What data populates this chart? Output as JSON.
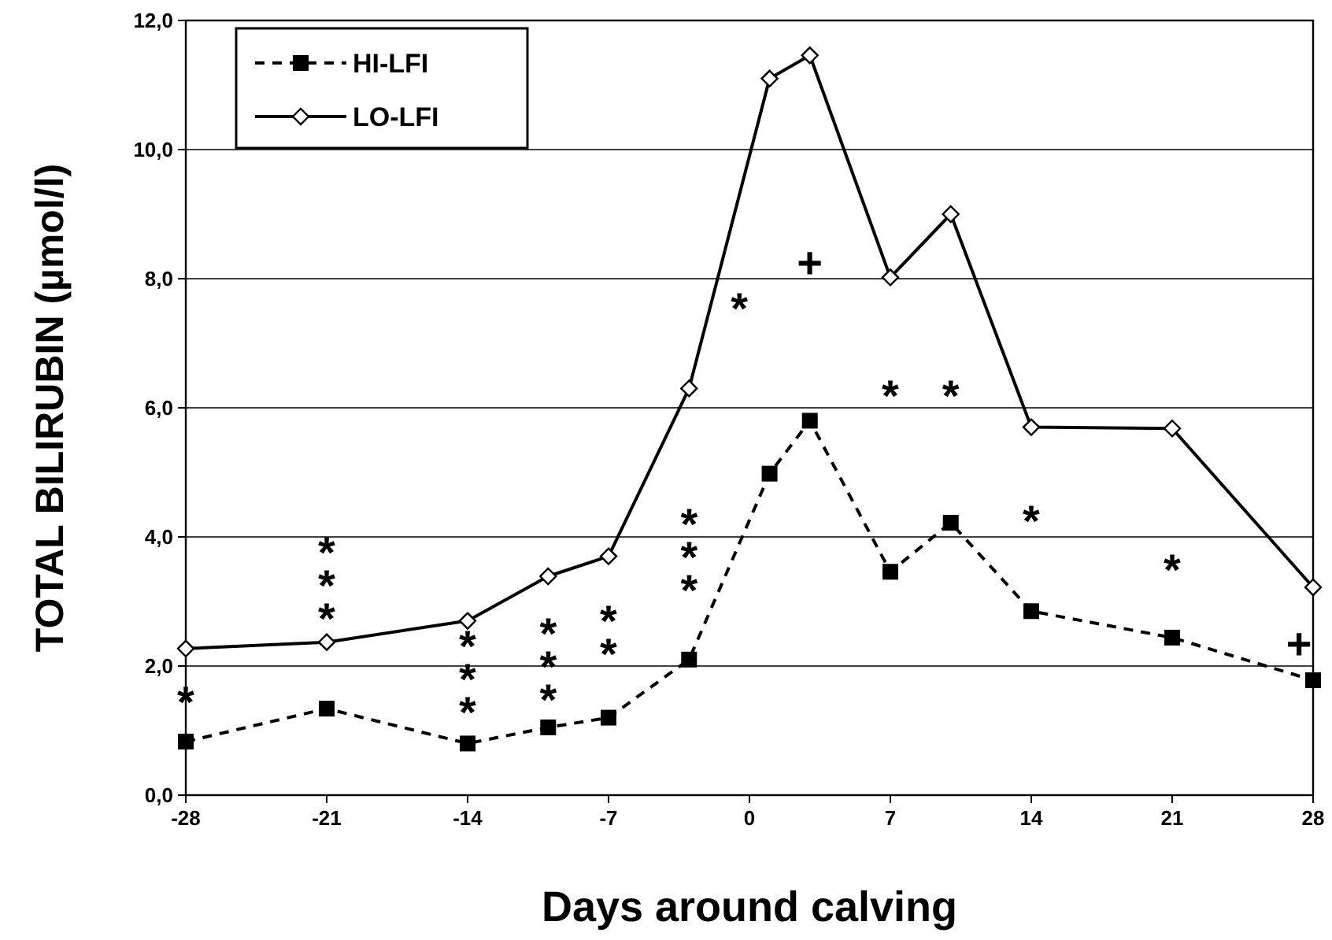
{
  "chart_data": {
    "type": "line",
    "xlabel": "Days around calving",
    "ylabel": "TOTAL BILIRUBIN (µmol/l)",
    "xlim": [
      -28,
      28
    ],
    "xticks": [
      -28,
      -21,
      -14,
      -7,
      0,
      7,
      14,
      21,
      28
    ],
    "ylim": [
      0,
      12
    ],
    "yticks": [
      {
        "value": 0,
        "label": "0,0"
      },
      {
        "value": 2,
        "label": "2,0"
      },
      {
        "value": 4,
        "label": "4,0"
      },
      {
        "value": 6,
        "label": "6,0"
      },
      {
        "value": 8,
        "label": "8,0"
      },
      {
        "value": 10,
        "label": "10,0"
      },
      {
        "value": 12,
        "label": "12,0"
      }
    ],
    "grid": "y",
    "legend": "top left",
    "x": [
      -28,
      -21,
      -14,
      -10,
      -7,
      -3,
      1,
      3,
      7,
      10,
      14,
      21,
      28
    ],
    "series": [
      {
        "name": "HI-LFI",
        "color": "#000000",
        "marker": "square",
        "line_style": "dashed",
        "values": [
          0.83,
          1.34,
          0.8,
          1.05,
          1.2,
          2.1,
          4.98,
          5.8,
          3.46,
          4.22,
          2.85,
          2.44,
          1.78
        ]
      },
      {
        "name": "LO-LFI",
        "color": "#000000",
        "marker": "diamond",
        "line_style": "solid",
        "values": [
          2.27,
          2.37,
          2.7,
          3.39,
          3.7,
          6.3,
          11.1,
          11.46,
          8.02,
          9.0,
          5.7,
          5.68,
          3.22
        ]
      }
    ],
    "annotations": [
      "*",
      "*\n*\n*",
      "*\n*\n*",
      "*\n*\n*",
      "*\n*",
      "*\n*\n*",
      "*",
      "+",
      "*",
      "*",
      "*",
      "*",
      "+"
    ]
  }
}
